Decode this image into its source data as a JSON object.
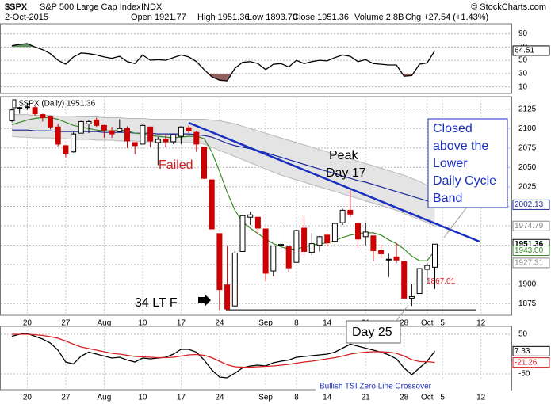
{
  "header": {
    "symbol": "$SPX",
    "name": "S&P 500 Large Cap Index",
    "exchange": "INDX",
    "date": "2-Oct-2015",
    "copyright": "© StockCharts.com",
    "open": "Open 1921.77",
    "high": "High 1951.36",
    "low": "Low 1893.70",
    "close": "Close 1951.36",
    "volume": "Volume 2.8B",
    "change": "Chg +27.54 (+1.43%)"
  },
  "chart_data": [
    {
      "type": "candlestick",
      "legend": "$SPX (Daily) 1951.36",
      "categories": [
        null,
        null,
        "20",
        null,
        null,
        null,
        null,
        "27",
        null,
        null,
        null,
        null,
        "Aug",
        null,
        null,
        null,
        null,
        "10",
        null,
        null,
        null,
        null,
        "17",
        null,
        null,
        null,
        null,
        "24",
        null,
        null,
        null,
        null,
        null,
        "Sep",
        null,
        null,
        null,
        "8",
        null,
        null,
        null,
        "14",
        null,
        null,
        null,
        null,
        "21",
        null,
        null,
        null,
        null,
        "28",
        null,
        null,
        "Oct",
        null,
        "5",
        null,
        null,
        null,
        null,
        "12",
        null,
        null,
        null,
        null
      ],
      "open": [
        2110,
        2126,
        2127,
        2127,
        2118,
        2115,
        2102,
        2078,
        2070,
        2094,
        2106,
        2111,
        2104,
        2097,
        2096,
        2100,
        2082,
        2080,
        2102,
        2082,
        2086,
        2083,
        2090,
        2101,
        2095,
        2076,
        2034,
        1965,
        1899,
        1872,
        1942,
        1986,
        1986,
        1971,
        1917,
        1950,
        1948,
        1928,
        1972,
        1941,
        1950,
        1963,
        1955,
        1979,
        1995,
        1978,
        1961,
        1962,
        1943,
        1932,
        1935,
        1929,
        1882,
        1888,
        1919,
        1921.77,
        null,
        null,
        null,
        null,
        null,
        null,
        null,
        null,
        null,
        null
      ],
      "high": [
        2126,
        2128,
        2133,
        2129,
        2119,
        2116,
        2106,
        2078,
        2095,
        2110,
        2111,
        2114,
        2105,
        2102,
        2112,
        2103,
        2082,
        2105,
        2102,
        2089,
        2093,
        2092,
        2103,
        2104,
        2097,
        2076,
        2034,
        1965,
        1949,
        1943,
        1989,
        1993,
        1986,
        1971,
        1949,
        1975,
        1948,
        1970,
        1987,
        1966,
        1962,
        1963,
        1980,
        1997,
        2021,
        1980,
        1979,
        1962,
        1950,
        1939,
        1953,
        1929,
        1900,
        1920,
        1927,
        1951.36,
        null,
        null,
        null,
        null,
        null,
        null,
        null,
        null,
        null,
        null
      ],
      "low": [
        2108,
        2119,
        2124,
        2116,
        2109,
        2099,
        2077,
        2063,
        2069,
        2094,
        2094,
        2102,
        2088,
        2088,
        2095,
        2075,
        2067,
        2080,
        2076,
        2053,
        2076,
        2080,
        2080,
        2094,
        2070,
        2035,
        1971,
        1867,
        1867,
        1872,
        1942,
        1976,
        1965,
        1904,
        1910,
        1945,
        1916,
        1928,
        1937,
        1937,
        1942,
        1948,
        1953,
        1976,
        1986,
        1946,
        1950,
        1929,
        1933,
        1909,
        1927,
        1880,
        1872,
        1888,
        1900,
        1893.7,
        null,
        null,
        null,
        null,
        null,
        null,
        null,
        null,
        null,
        null
      ],
      "close": [
        2124,
        2127,
        2128,
        2119,
        2114,
        2102,
        2080,
        2068,
        2093,
        2109,
        2109,
        2104,
        2098,
        2093,
        2100,
        2084,
        2078,
        2104,
        2084,
        2086,
        2083,
        2092,
        2102,
        2097,
        2080,
        2036,
        1971,
        1893,
        1868,
        1940,
        1988,
        1989,
        1972,
        1914,
        1949,
        1951,
        1921,
        1969,
        1942,
        1952,
        1961,
        1953,
        1978,
        1995,
        1990,
        1958,
        1967,
        1943,
        1939,
        1932,
        1931,
        1882,
        1884,
        1920,
        1924,
        1951.36,
        null,
        null,
        null,
        null,
        null,
        null,
        null,
        null,
        null,
        null
      ],
      "up_color": "#000000",
      "down_color": "#cc0000",
      "band": {
        "color": "#e4e4e4",
        "edge": "#b8b8b8",
        "upper": [
          2118,
          2118,
          2118,
          2117,
          2117,
          2117,
          2116,
          2116,
          2116,
          2115,
          2115,
          2115,
          2114,
          2114,
          2114,
          2113,
          2113,
          2113,
          2112,
          2112,
          2112,
          2112,
          2112,
          2112,
          2112,
          2112,
          2111,
          2110,
          2108,
          2106,
          2103,
          2100,
          2097,
          2094,
          2091,
          2088,
          2085,
          2082,
          2079,
          2076,
          2073,
          2070,
          2067,
          2064,
          2061,
          2058,
          2055,
          2052,
          2049,
          2046,
          2043,
          2040,
          2036,
          2032,
          2027,
          2021,
          null,
          null,
          null,
          null,
          null,
          null,
          null,
          null,
          null,
          null
        ],
        "lower": [
          2090,
          2089,
          2089,
          2088,
          2088,
          2088,
          2087,
          2087,
          2086,
          2086,
          2086,
          2085,
          2085,
          2085,
          2084,
          2084,
          2084,
          2083,
          2083,
          2083,
          2082,
          2082,
          2082,
          2082,
          2082,
          2080,
          2076,
          2072,
          2068,
          2064,
          2060,
          2056,
          2052,
          2048,
          2044,
          2040,
          2037,
          2034,
          2031,
          2028,
          2025,
          2022,
          2019,
          2016,
          2013,
          2010,
          2007,
          2004,
          2001,
          1998,
          1995,
          1991,
          1987,
          1983,
          1979,
          1974.79,
          null,
          null,
          null,
          null,
          null,
          null,
          null,
          null,
          null,
          null
        ]
      },
      "series": [
        {
          "color": "#1f2a9a",
          "values": [
            2098,
            2098,
            2098,
            2097,
            2097,
            2097,
            2096,
            2096,
            2096,
            2096,
            2096,
            2096,
            2095,
            2095,
            2095,
            2095,
            2094,
            2094,
            2094,
            2093,
            2093,
            2093,
            2093,
            2093,
            2092,
            2091,
            2089,
            2085,
            2081,
            2078,
            2076,
            2074,
            2072,
            2069,
            2066,
            2063,
            2060,
            2057,
            2054,
            2051,
            2048,
            2045,
            2042,
            2039,
            2036,
            2033,
            2031,
            2028,
            2025,
            2022,
            2019,
            2016,
            2013,
            2010,
            2007,
            2002.13,
            null,
            null,
            null,
            null,
            null,
            null,
            null,
            null,
            null,
            null
          ]
        },
        {
          "color": "#3a8a2a",
          "values": [
            2105,
            2108,
            2111,
            2113,
            2114,
            2114,
            2112,
            2108,
            2104,
            2102,
            2100,
            2098,
            2097,
            2097,
            2098,
            2097,
            2094,
            2093,
            2091,
            2090,
            2089,
            2088,
            2089,
            2090,
            2090,
            2087,
            2070,
            2045,
            2018,
            1995,
            1980,
            1972,
            1965,
            1958,
            1952,
            1948,
            1945,
            1945,
            1948,
            1950,
            1952,
            1953,
            1956,
            1960,
            1963,
            1965,
            1966,
            1966,
            1963,
            1957,
            1952,
            1945,
            1936,
            1930,
            1930,
            1943.0,
            null,
            null,
            null,
            null,
            null,
            null,
            null,
            null,
            null,
            null
          ]
        }
      ],
      "ylim": [
        1860,
        2141
      ],
      "yticks": [
        1875,
        1900,
        1925,
        1950,
        1975,
        2000,
        2025,
        2050,
        2075,
        2100,
        2125
      ],
      "grid": true,
      "price_labels": [
        {
          "value": 2002.13,
          "label": "2002.13",
          "color": "#1f2a9a"
        },
        {
          "value": 1974.79,
          "label": "1974.79",
          "color": "#888888"
        },
        {
          "value": 1951.36,
          "label": "1951.36",
          "color": "#000000"
        },
        {
          "value": 1943,
          "label": "1943.00",
          "color": "#3a8a2a"
        },
        {
          "value": 1927.31,
          "label": "1927.31",
          "color": "#888888"
        }
      ],
      "support": {
        "value": 1867.01,
        "label": "1867.01"
      },
      "annotations": {
        "failed": "Failed",
        "peak": [
          "Peak",
          "Day 17"
        ],
        "callout": [
          "Closed",
          "above the",
          "Lower",
          "Daily Cycle",
          "Band"
        ],
        "lt": "34 LT F",
        "day25": "Day 25"
      }
    },
    {
      "type": "line",
      "above_color": "#5f8f5f",
      "below_color": "#8f5f5a",
      "series": [
        {
          "color": "#000000",
          "values": [
            72,
            74,
            75,
            70,
            66,
            60,
            50,
            44,
            55,
            61,
            60,
            58,
            55,
            53,
            56,
            48,
            45,
            58,
            50,
            51,
            50,
            54,
            58,
            55,
            48,
            36,
            25,
            20,
            19,
            38,
            47,
            48,
            45,
            36,
            44,
            45,
            40,
            50,
            45,
            48,
            50,
            49,
            54,
            58,
            56,
            48,
            51,
            45,
            44,
            43,
            43,
            26,
            27,
            44,
            46,
            64.51
          ]
        }
      ],
      "ylim": [
        0,
        105
      ],
      "yticks": [
        10,
        30,
        50,
        70,
        90
      ],
      "grid": true,
      "price_labels": [
        {
          "value": 64.51,
          "label": "64.51",
          "color": "#000000"
        }
      ]
    },
    {
      "type": "line",
      "categories": [
        null,
        null,
        "20",
        null,
        null,
        null,
        null,
        "27",
        null,
        null,
        null,
        null,
        "Aug",
        null,
        null,
        null,
        null,
        "10",
        null,
        null,
        null,
        null,
        "17",
        null,
        null,
        null,
        null,
        "24",
        null,
        null,
        null,
        null,
        null,
        "Sep",
        null,
        null,
        null,
        "8",
        null,
        null,
        null,
        "14",
        null,
        null,
        null,
        null,
        "21",
        null,
        null,
        null,
        null,
        "28",
        null,
        null,
        "Oct",
        null,
        "5",
        null,
        null,
        null,
        null,
        "12",
        null,
        null,
        null,
        null
      ],
      "series": [
        {
          "color": "#000000",
          "values": [
            45,
            50,
            52,
            45,
            38,
            28,
            10,
            -20,
            -25,
            -5,
            5,
            0,
            -5,
            -10,
            -8,
            -15,
            -20,
            -10,
            -12,
            -10,
            -8,
            0,
            12,
            12,
            5,
            -15,
            -40,
            -58,
            -60,
            -48,
            -35,
            -30,
            -28,
            -30,
            -22,
            -18,
            -15,
            -8,
            -6,
            -4,
            -2,
            0,
            5,
            15,
            25,
            20,
            15,
            10,
            5,
            -2,
            -12,
            -35,
            -52,
            -35,
            -18,
            7.33,
            null,
            null,
            null,
            null,
            null,
            null,
            null,
            null,
            null,
            null
          ]
        },
        {
          "color": "#d42020",
          "values": [
            50,
            50,
            50,
            49,
            47,
            44,
            40,
            33,
            25,
            18,
            14,
            10,
            6,
            2,
            0,
            -3,
            -6,
            -7,
            -8,
            -9,
            -9,
            -8,
            -5,
            -2,
            -1,
            -3,
            -9,
            -18,
            -27,
            -32,
            -33,
            -33,
            -32,
            -31,
            -30,
            -28,
            -26,
            -23,
            -20,
            -18,
            -15,
            -12,
            -9,
            -5,
            0,
            3,
            5,
            6,
            6,
            5,
            2,
            -5,
            -14,
            -19,
            -19,
            -21.26,
            null,
            null,
            null,
            null,
            null,
            null,
            null,
            null,
            null,
            null
          ]
        }
      ],
      "ylim": [
        -90,
        70
      ],
      "yticks": [
        -50,
        50
      ],
      "grid": true,
      "price_labels": [
        {
          "value": 7.33,
          "label": "7.33",
          "color": "#000000"
        },
        {
          "value": -21.26,
          "label": "-21.26",
          "color": "#d42020"
        }
      ],
      "annotations": {
        "crossover": "Bullish TSI Zero Line Crossover"
      }
    }
  ]
}
